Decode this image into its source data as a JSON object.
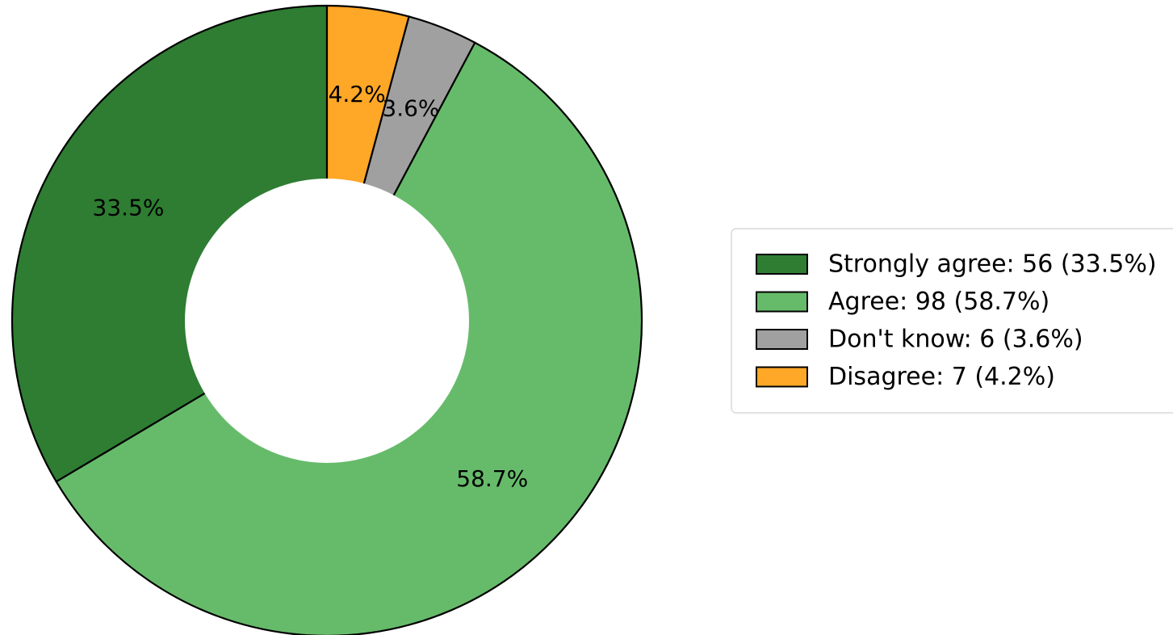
{
  "chart_data": {
    "type": "pie",
    "variant": "donut",
    "title": "",
    "slices": [
      {
        "label": "Strongly agree",
        "value": 56,
        "percent_label": "33.5%",
        "legend": "Strongly agree: 56 (33.5%)",
        "color": "#2e7d32"
      },
      {
        "label": "Agree",
        "value": 98,
        "percent_label": "58.7%",
        "legend": "Agree: 98 (58.7%)",
        "color": "#66bb6a"
      },
      {
        "label": "Don't know",
        "value": 6,
        "percent_label": "3.6%",
        "legend": "Don't know: 6 (3.6%)",
        "color": "#a0a0a0"
      },
      {
        "label": "Disagree",
        "value": 7,
        "percent_label": "4.2%",
        "legend": "Disagree: 7 (4.2%)",
        "color": "#ffa726"
      }
    ],
    "start_angle_deg": 90,
    "direction": "counterclockwise",
    "legend_position": "right"
  }
}
